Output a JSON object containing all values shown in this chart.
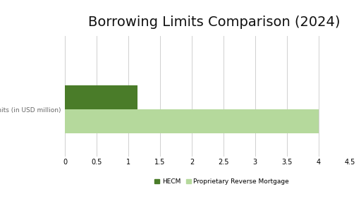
{
  "title": "Borrowing Limits Comparison (2024)",
  "title_fontsize": 14,
  "categories": [
    "Borrowing Limits (in USD million)"
  ],
  "series": [
    {
      "label": "HECM",
      "value": 1.149,
      "color": "#4a7c29"
    },
    {
      "label": "Proprietary Reverse Mortgage",
      "value": 4.0,
      "color": "#b5d99c"
    }
  ],
  "xlim": [
    0,
    4.5
  ],
  "xticks": [
    0,
    0.5,
    1,
    1.5,
    2,
    2.5,
    3,
    3.5,
    4,
    4.5
  ],
  "xtick_labels": [
    "0",
    "0.5",
    "1",
    "1.5",
    "2",
    "2.5",
    "3",
    "3.5",
    "4",
    "4.5"
  ],
  "bar_height": 0.28,
  "background_color": "#ffffff",
  "grid_color": "#d0d0d0",
  "legend_fontsize": 6.5,
  "tick_fontsize": 7,
  "ytick_fontsize": 6.5
}
